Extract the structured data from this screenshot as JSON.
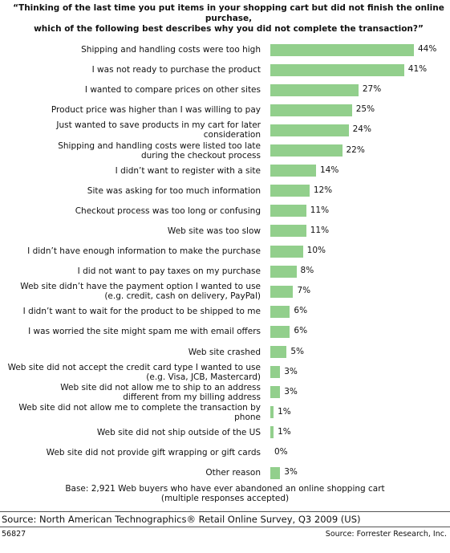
{
  "chart_data": {
    "type": "bar",
    "orientation": "horizontal",
    "title": "“Thinking of the last time you put items in your shopping cart but did not finish the online purchase,\nwhich of the following best describes why you did not complete the transaction?”",
    "categories": [
      "Shipping and handling costs were too high",
      "I was not ready to purchase the product",
      "I wanted to compare prices on other sites",
      "Product price was higher than I was willing to pay",
      "Just wanted to save products in my cart for later consideration",
      "Shipping and handling costs were listed too late\nduring the checkout process",
      "I didn’t want to register with a site",
      "Site was asking for too much information",
      "Checkout process was too long or confusing",
      "Web site was too slow",
      "I didn’t have enough information to make the purchase",
      "I did not want to pay taxes on my purchase",
      "Web site didn’t have the payment option I wanted to use\n(e.g. credit, cash on delivery, PayPal)",
      "I didn’t want to wait for the product to be shipped to me",
      "I was worried the site might spam me with email offers",
      "Web site crashed",
      "Web site did not accept the credit card type I wanted to use\n(e.g. Visa, JCB, Mastercard)",
      "Web site did not allow me to ship to an address\ndifferent from my billing address",
      "Web site did not allow me to complete the transaction by phone",
      "Web site did not ship outside of the US",
      "Web site did not provide gift wrapping or gift cards",
      "Other reason"
    ],
    "values": [
      44,
      41,
      27,
      25,
      24,
      22,
      14,
      12,
      11,
      11,
      10,
      8,
      7,
      6,
      6,
      5,
      3,
      3,
      1,
      1,
      0,
      3
    ],
    "value_labels": [
      "44%",
      "41%",
      "27%",
      "25%",
      "24%",
      "22%",
      "14%",
      "12%",
      "11%",
      "11%",
      "10%",
      "8%",
      "7%",
      "6%",
      "6%",
      "5%",
      "3%",
      "3%",
      "1%",
      "1%",
      "0%",
      "3%"
    ],
    "color": "#92cf8c",
    "note": "Base: 2,921 Web buyers who have ever abandoned an online shopping cart\n(multiple responses accepted)",
    "source": "Source: North American Technographics® Retail Online Survey, Q3 2009 (US)",
    "id": "56827",
    "credit": "Source: Forrester Research, Inc."
  }
}
